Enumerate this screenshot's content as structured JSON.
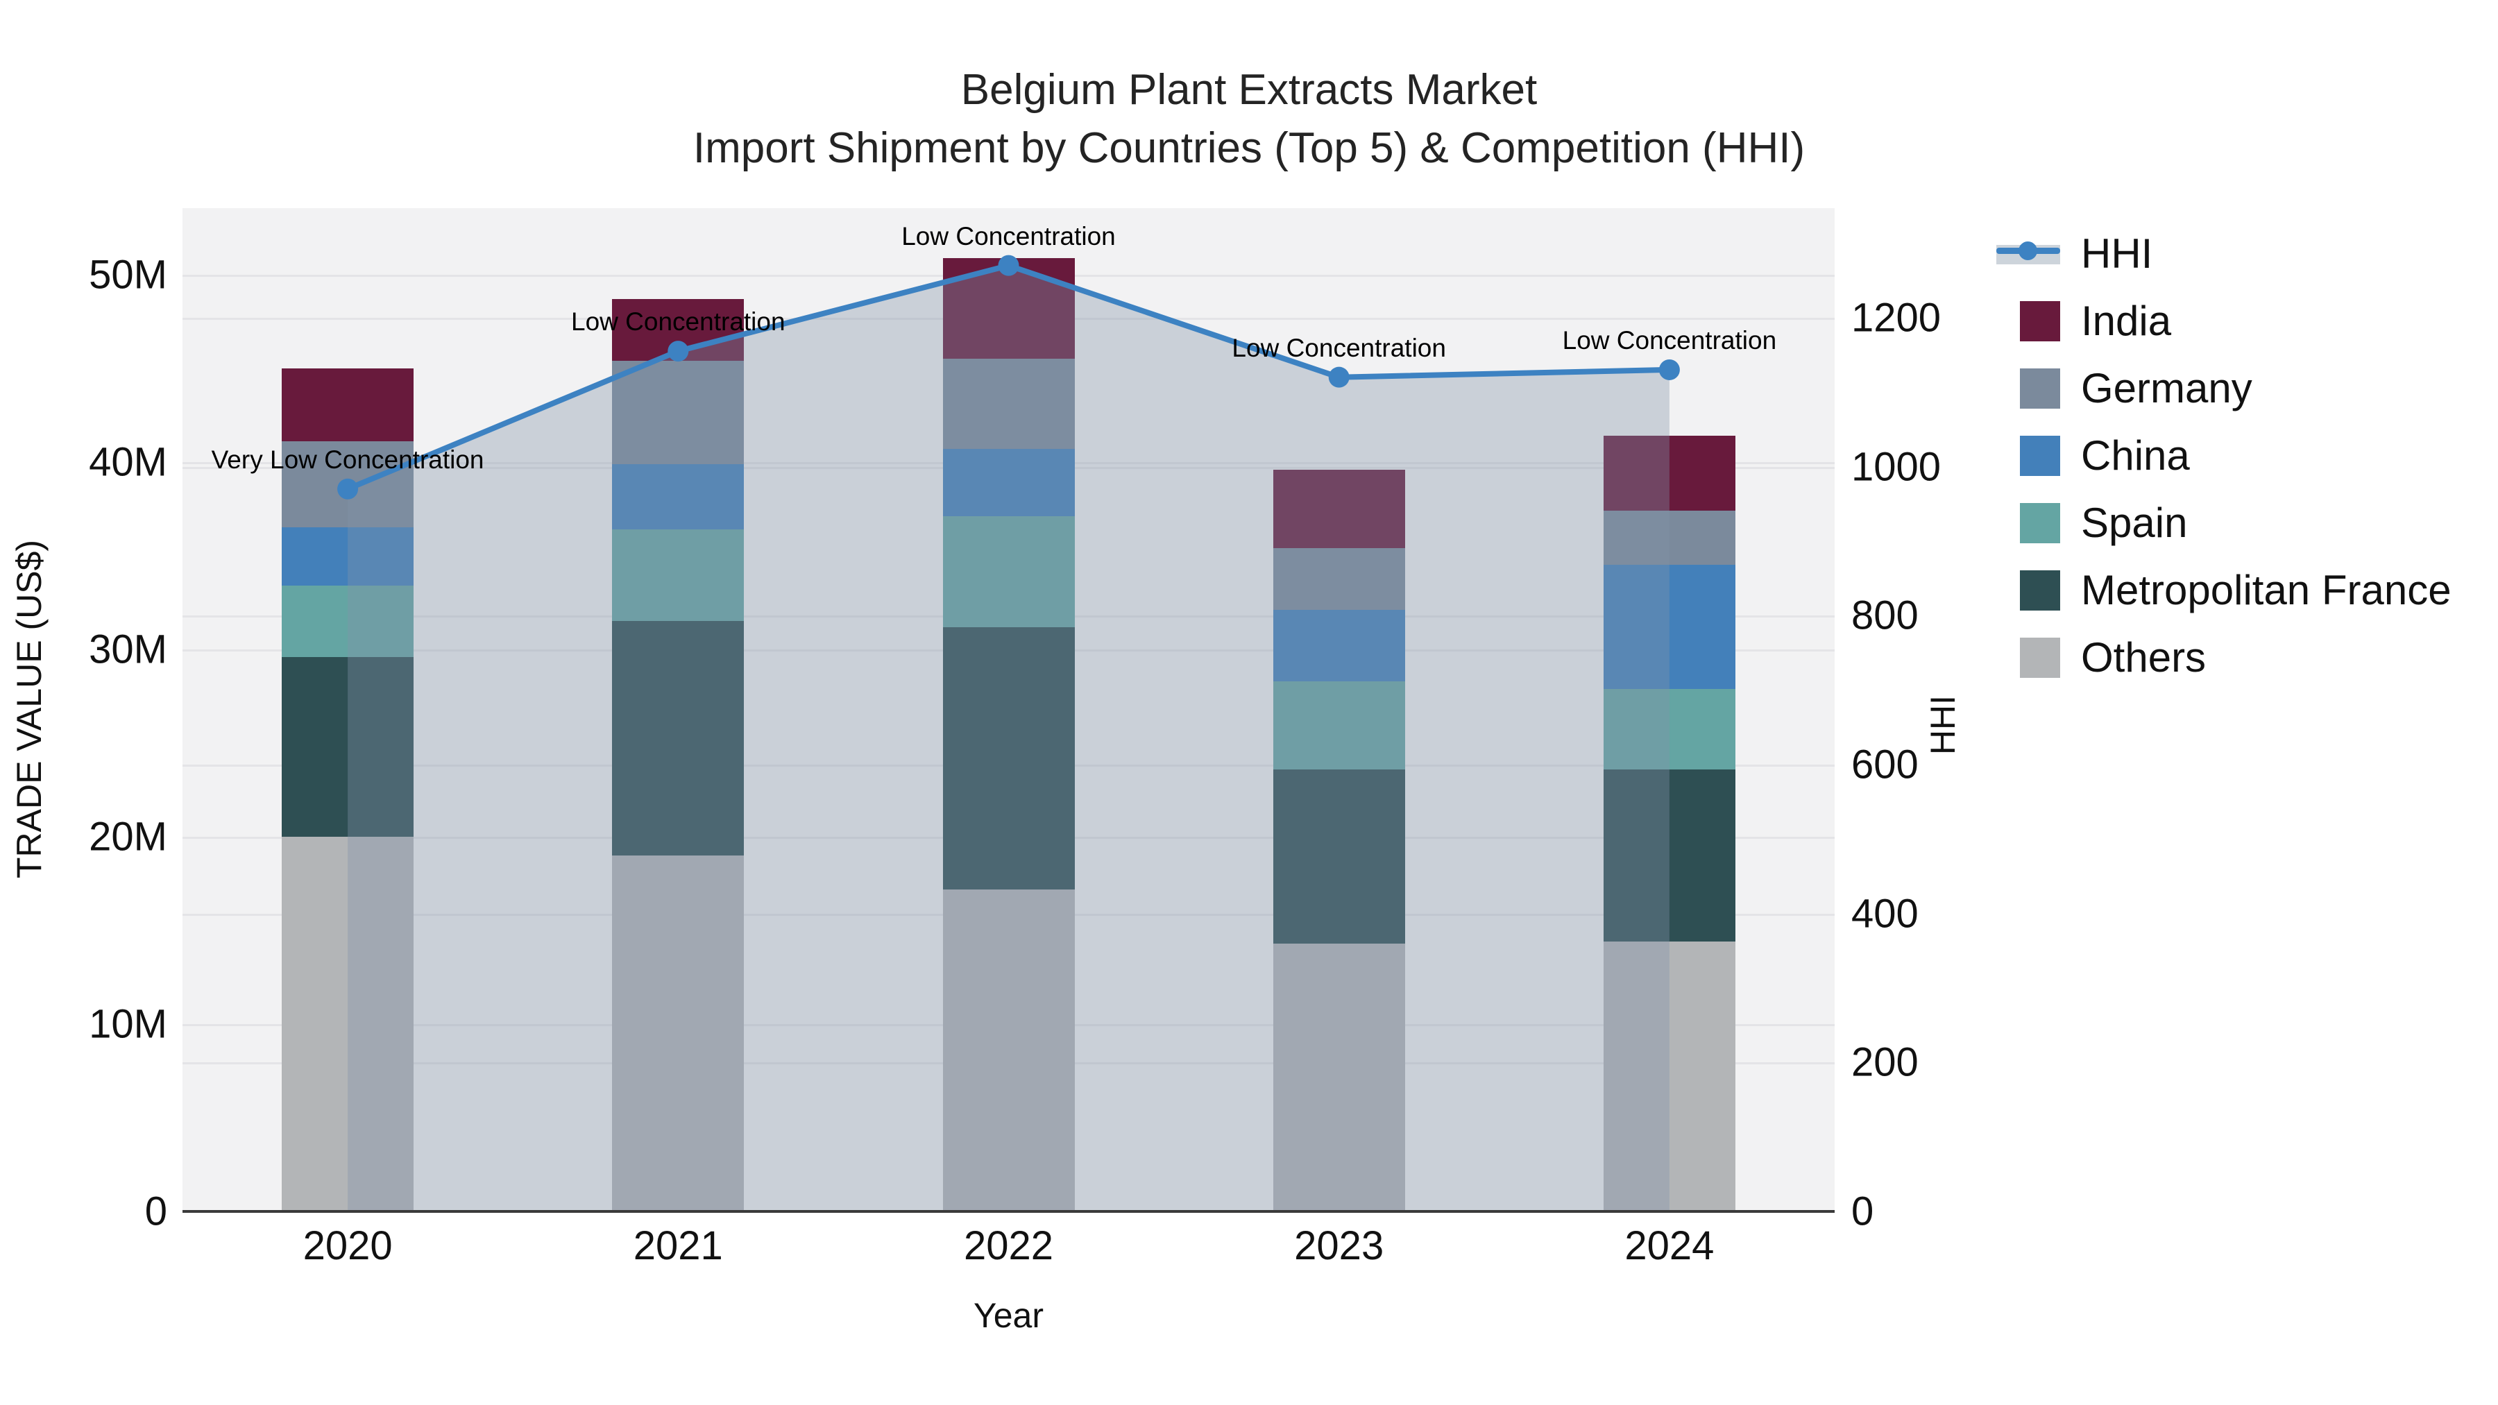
{
  "title": {
    "line1": "Belgium Plant Extracts Market",
    "line2": "Import Shipment by Countries (Top 5) & Competition (HHI)"
  },
  "chart_data": {
    "type": "bar",
    "subtype": "stacked-bars-with-line",
    "categories": [
      "2020",
      "2021",
      "2022",
      "2023",
      "2024"
    ],
    "series": [
      {
        "name": "Others",
        "color": "#b3b5b7",
        "values": [
          20.0,
          19.0,
          17.2,
          14.3,
          14.4
        ]
      },
      {
        "name": "Metropolitan France",
        "color": "#2e4f53",
        "values": [
          9.6,
          12.5,
          14.0,
          9.3,
          9.2
        ]
      },
      {
        "name": "Spain",
        "color": "#64a5a3",
        "values": [
          3.8,
          4.9,
          5.9,
          4.7,
          4.3
        ]
      },
      {
        "name": "China",
        "color": "#4380ba",
        "values": [
          3.1,
          3.5,
          3.6,
          3.8,
          6.6
        ]
      },
      {
        "name": "Germany",
        "color": "#7b8a9c",
        "values": [
          4.6,
          5.5,
          4.8,
          3.3,
          2.9
        ]
      },
      {
        "name": "India",
        "color": "#681a3c",
        "values": [
          3.9,
          3.3,
          5.4,
          4.2,
          4.0
        ]
      }
    ],
    "bar_totals": [
      45.0,
      48.7,
      50.9,
      39.6,
      41.4
    ],
    "line_series": {
      "name": "HHI",
      "color": "#3d82c2",
      "area_fill": "rgba(130,148,168,0.36)",
      "values": [
        970,
        1155,
        1270,
        1120,
        1130
      ]
    },
    "annotations": [
      {
        "year": "2020",
        "text": "Very Low Concentration"
      },
      {
        "year": "2021",
        "text": "Low Concentration"
      },
      {
        "year": "2022",
        "text": "Low Concentration"
      },
      {
        "year": "2023",
        "text": "Low Concentration"
      },
      {
        "year": "2024",
        "text": "Low Concentration"
      }
    ],
    "xlabel": "Year",
    "left_axis": {
      "title": "TRADE VALUE (US$)",
      "max": 53.55,
      "ticks": [
        {
          "v": 0,
          "label": "0"
        },
        {
          "v": 10,
          "label": "10M"
        },
        {
          "v": 20,
          "label": "20M"
        },
        {
          "v": 30,
          "label": "30M"
        },
        {
          "v": 40,
          "label": "40M"
        },
        {
          "v": 50,
          "label": "50M"
        }
      ]
    },
    "right_axis": {
      "title": "HHI",
      "max": 1347,
      "ticks": [
        {
          "v": 0,
          "label": "0"
        },
        {
          "v": 200,
          "label": "200"
        },
        {
          "v": 400,
          "label": "400"
        },
        {
          "v": 600,
          "label": "600"
        },
        {
          "v": 800,
          "label": "800"
        },
        {
          "v": 1000,
          "label": "1000"
        },
        {
          "v": 1200,
          "label": "1200"
        }
      ]
    },
    "legend_position": "right",
    "grid": true
  },
  "legend": {
    "items": [
      {
        "label": "HHI",
        "type": "line",
        "color": "#3d82c2"
      },
      {
        "label": "India",
        "type": "swatch",
        "color": "#681a3c"
      },
      {
        "label": "Germany",
        "type": "swatch",
        "color": "#7b8a9c"
      },
      {
        "label": "China",
        "type": "swatch",
        "color": "#4380ba"
      },
      {
        "label": "Spain",
        "type": "swatch",
        "color": "#64a5a3"
      },
      {
        "label": "Metropolitan France",
        "type": "swatch",
        "color": "#2e4f53"
      },
      {
        "label": "Others",
        "type": "swatch",
        "color": "#b3b5b7"
      }
    ]
  },
  "colors": {
    "plot_background": "#f2f2f3",
    "gridline": "#e4e4e7",
    "axis_line": "#3a3a3a",
    "text": "#111111"
  }
}
